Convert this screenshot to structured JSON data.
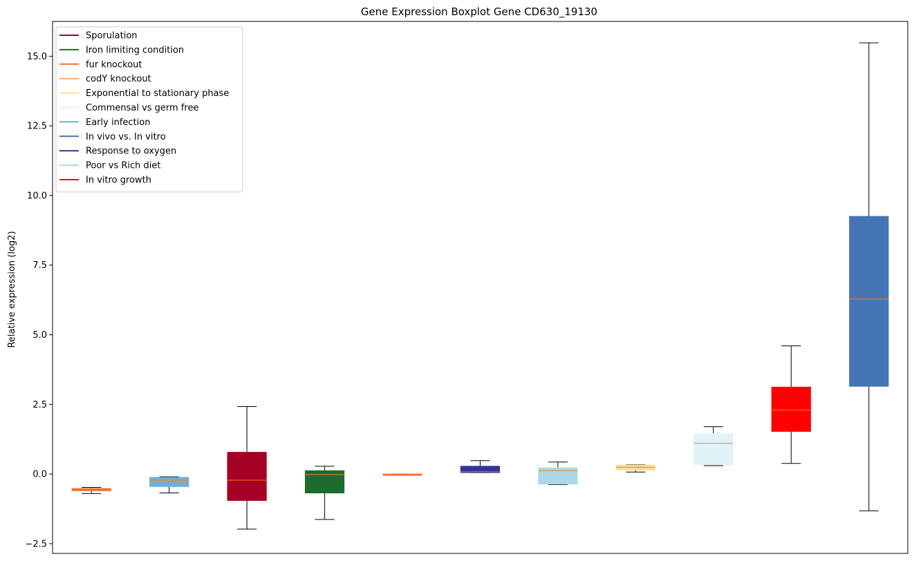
{
  "chart_data": {
    "type": "boxplot",
    "title": "Gene Expression Boxplot Gene CD630_19130",
    "xlabel": "",
    "ylabel": "Relative expression (log2)",
    "ylim": [
      -2.85,
      16.25
    ],
    "yticks": [
      -2.5,
      0.0,
      2.5,
      5.0,
      7.5,
      10.0,
      12.5,
      15.0
    ],
    "ytick_labels": [
      "−2.5",
      "0.0",
      "2.5",
      "5.0",
      "7.5",
      "10.0",
      "12.5",
      "15.0"
    ],
    "legend": {
      "placement": "top-left",
      "entries": [
        {
          "label": "Sporulation",
          "color": "#a50026"
        },
        {
          "label": "Iron limiting condition",
          "color": "#1e6b2e"
        },
        {
          "label": "fur knockout",
          "color": "#f46d43"
        },
        {
          "label": "codY knockout",
          "color": "#fdae61"
        },
        {
          "label": "Exponential to stationary phase",
          "color": "#fee090"
        },
        {
          "label": "Commensal vs germ free",
          "color": "#e0f3f8"
        },
        {
          "label": "Early infection",
          "color": "#74add1"
        },
        {
          "label": "In vivo vs. In vitro",
          "color": "#4575b4"
        },
        {
          "label": "Response to oxygen",
          "color": "#313695"
        },
        {
          "label": "Poor vs Rich diet",
          "color": "#abd9e9"
        },
        {
          "label": "In vitro growth",
          "color": "#ff0000"
        }
      ]
    },
    "median_color": "#ff7f0e",
    "boxes": [
      {
        "color": "#f46d43",
        "whislo": -0.7,
        "q1": -0.6,
        "med": -0.55,
        "q3": -0.52,
        "whishi": -0.48
      },
      {
        "color": "#74add1",
        "whislo": -0.68,
        "q1": -0.45,
        "med": -0.22,
        "q3": -0.12,
        "whishi": -0.1
      },
      {
        "color": "#a50026",
        "whislo": -1.98,
        "q1": -0.95,
        "med": -0.22,
        "q3": 0.78,
        "whishi": 2.42
      },
      {
        "color": "#1e6b2e",
        "whislo": -1.63,
        "q1": -0.68,
        "med": -0.02,
        "q3": 0.12,
        "whishi": 0.28
      },
      {
        "color": "#f46d43",
        "whislo": -0.02,
        "q1": -0.02,
        "med": -0.01,
        "q3": 0.0,
        "whishi": 0.0
      },
      {
        "color": "#313695",
        "whislo": 0.05,
        "q1": 0.05,
        "med": 0.08,
        "q3": 0.28,
        "whishi": 0.48
      },
      {
        "color": "#abd9e9",
        "whislo": -0.38,
        "q1": -0.36,
        "med": 0.12,
        "q3": 0.22,
        "whishi": 0.43
      },
      {
        "color": "#fee090",
        "whislo": 0.07,
        "q1": 0.14,
        "med": 0.24,
        "q3": 0.32,
        "whishi": 0.33
      },
      {
        "color": "#e0f3f8",
        "whislo": 0.3,
        "q1": 0.33,
        "med": 1.1,
        "q3": 1.45,
        "whishi": 1.7
      },
      {
        "color": "#ff0000",
        "whislo": 0.38,
        "q1": 1.53,
        "med": 2.3,
        "q3": 3.12,
        "whishi": 4.6
      },
      {
        "color": "#4575b4",
        "whislo": -1.32,
        "q1": 3.15,
        "med": 6.28,
        "q3": 9.25,
        "whishi": 15.48
      }
    ]
  }
}
